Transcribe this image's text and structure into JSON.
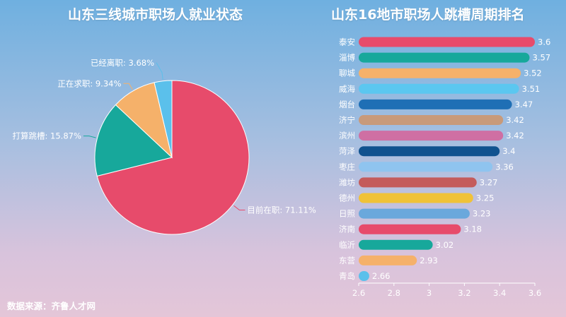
{
  "pie_title": "山东三线城市职场人就业状态",
  "bar_title": "山东16地市职场人跳槽周期排名",
  "source": "数据来源：齐鲁人才网",
  "colors": {
    "pie": [
      "#e74b6b",
      "#17a89b",
      "#f5b16a",
      "#5bc0eb"
    ],
    "bars": [
      "#e74b6b",
      "#17a89b",
      "#f5b16a",
      "#5bc7f0",
      "#1f6fb5",
      "#c89a7a",
      "#cf6fa3",
      "#10528f",
      "#8fc4ef",
      "#c45b5b",
      "#f0c238",
      "#6aa8dc",
      "#e74b6b",
      "#17a89b",
      "#f5b16a",
      "#5bc0eb"
    ]
  },
  "chart_data": [
    {
      "type": "pie",
      "title": "山东三线城市职场人就业状态",
      "slices": [
        {
          "name": "目前在职",
          "value": 71.11,
          "label": "目前在职: 71.11%"
        },
        {
          "name": "打算跳槽",
          "value": 15.87,
          "label": "打算跳槽: 15.87%"
        },
        {
          "name": "正在求职",
          "value": 9.34,
          "label": "正在求职: 9.34%"
        },
        {
          "name": "已经离职",
          "value": 3.68,
          "label": "已经离职: 3.68%"
        }
      ]
    },
    {
      "type": "bar",
      "orientation": "horizontal",
      "title": "山东16地市职场人跳槽周期排名",
      "categories": [
        "泰安",
        "淄博",
        "聊城",
        "威海",
        "烟台",
        "济宁",
        "滨州",
        "菏泽",
        "枣庄",
        "潍坊",
        "德州",
        "日照",
        "济南",
        "临沂",
        "东营",
        "青岛"
      ],
      "values": [
        3.6,
        3.57,
        3.52,
        3.51,
        3.47,
        3.42,
        3.42,
        3.4,
        3.36,
        3.27,
        3.25,
        3.23,
        3.18,
        3.02,
        2.93,
        2.66
      ],
      "xlim": [
        2.6,
        3.6
      ],
      "xticks": [
        "2.6",
        "2.8",
        "3",
        "3.2",
        "3.4",
        "3.6"
      ],
      "grid": false
    }
  ]
}
